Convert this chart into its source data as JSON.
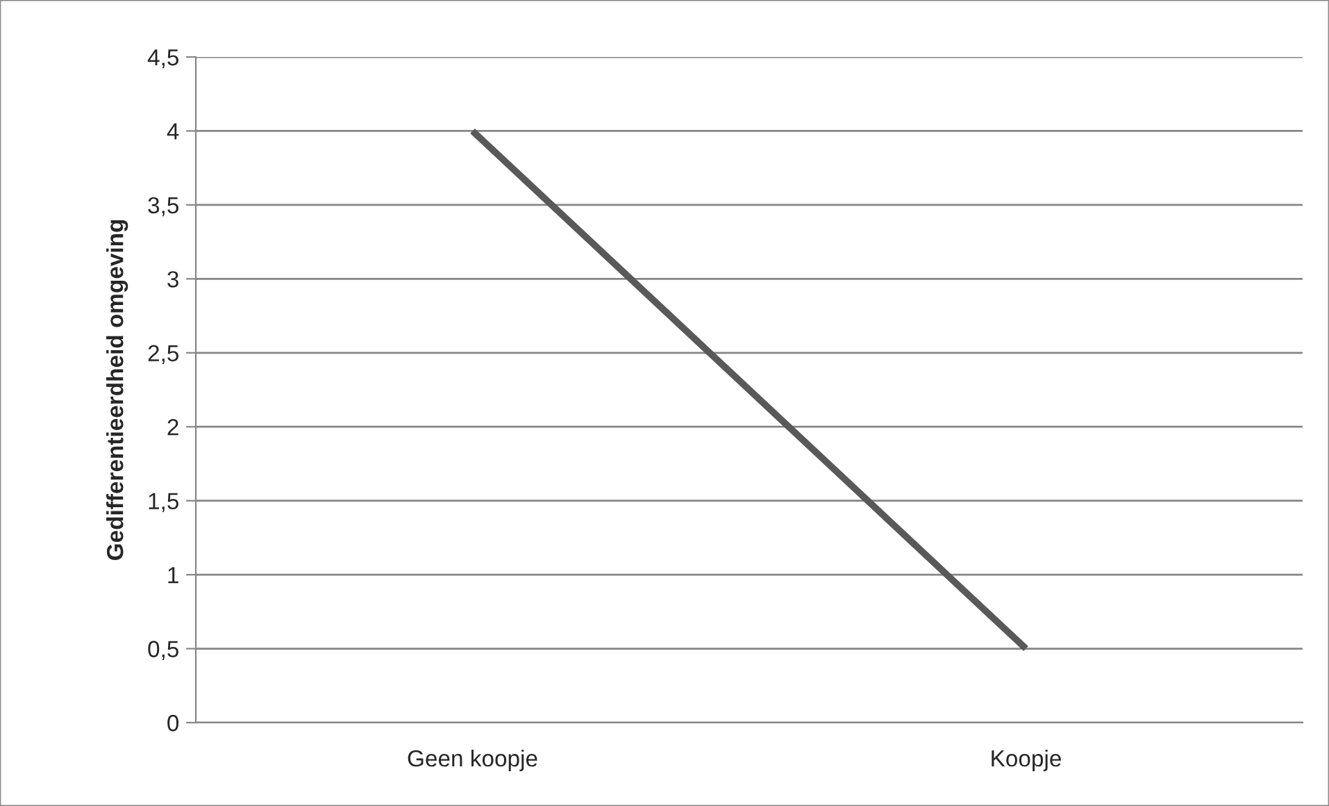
{
  "chart_data": {
    "type": "line",
    "ylabel": "Gedifferentieerdheid omgeving",
    "categories": [
      "Geen koopje",
      "Koopje"
    ],
    "series": [
      {
        "color": "#595959",
        "values": [
          4,
          0.5
        ]
      }
    ],
    "ylim": [
      0,
      4.5
    ],
    "yticks": [
      0,
      {
        "value": 0.5,
        "label": "0,5"
      },
      1,
      {
        "value": 1.5,
        "label": "1,5"
      },
      2,
      {
        "value": 2.5,
        "label": "2,5"
      },
      3,
      {
        "value": 3.5,
        "label": "3,5"
      },
      4,
      {
        "value": 4.5,
        "label": "4,5"
      }
    ],
    "grid": "y",
    "legend": false,
    "marker": "none",
    "line_style": "solid"
  }
}
